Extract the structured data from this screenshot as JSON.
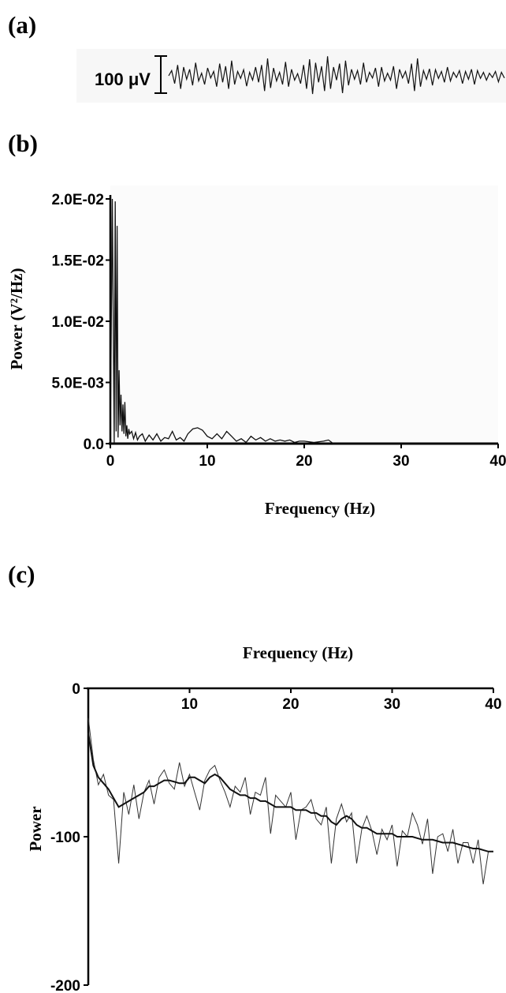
{
  "panel_labels": {
    "a": "(a)",
    "b": "(b)",
    "c": "(c)"
  },
  "colors": {
    "trace": "#111111",
    "axis": "#000000",
    "plot_bg_b": "#fbfbfb"
  },
  "chart_data": [
    {
      "panel": "a",
      "type": "line",
      "title": "",
      "scale_bar_label": "100 μV",
      "trace": [
        0,
        12,
        -18,
        25,
        -30,
        20,
        -8,
        15,
        -22,
        30,
        -12,
        6,
        -20,
        18,
        -5,
        10,
        -25,
        28,
        -15,
        22,
        -30,
        35,
        -20,
        10,
        -6,
        14,
        -24,
        8,
        -10,
        20,
        -15,
        25,
        -35,
        40,
        -28,
        18,
        -12,
        8,
        -20,
        32,
        -25,
        15,
        -10,
        5,
        -18,
        25,
        -30,
        38,
        -42,
        30,
        -15,
        22,
        -35,
        45,
        -30,
        20,
        -10,
        28,
        -40,
        35,
        -22,
        15,
        -8,
        12,
        -20,
        30,
        -15,
        8,
        -5,
        18,
        -25,
        20,
        -12,
        6,
        -10,
        22,
        -30,
        15,
        -5,
        10,
        -18,
        28,
        -35,
        40,
        -25,
        12,
        -8,
        16,
        -22,
        14,
        -6,
        10,
        -15,
        20,
        -12,
        8,
        -4,
        12,
        -18,
        10,
        -8,
        15,
        -20,
        12,
        -6,
        8,
        -10,
        6,
        -4,
        10,
        -14,
        8,
        -5
      ]
    },
    {
      "panel": "b",
      "type": "line",
      "title": "",
      "xlabel": "Frequency (Hz)",
      "ylabel": "Power (V²/Hz)",
      "xlim": [
        0,
        40
      ],
      "ylim": [
        0,
        0.02
      ],
      "xticks": [
        "0",
        "10",
        "20",
        "30",
        "40"
      ],
      "yticks": [
        "0.0",
        "5.0E-03",
        "1.0E-02",
        "1.5E-02",
        "2.0E-02"
      ],
      "x": [
        0,
        0.2,
        0.4,
        0.5,
        0.6,
        0.7,
        0.8,
        0.9,
        1.0,
        1.1,
        1.2,
        1.3,
        1.4,
        1.5,
        1.6,
        1.7,
        1.8,
        1.9,
        2.0,
        2.2,
        2.4,
        2.6,
        2.8,
        3.0,
        3.3,
        3.6,
        4.0,
        4.4,
        4.8,
        5.2,
        5.6,
        6.0,
        6.4,
        6.8,
        7.2,
        7.6,
        8.0,
        8.5,
        9.0,
        9.5,
        10.0,
        10.5,
        11.0,
        11.5,
        12.0,
        12.5,
        13.0,
        13.5,
        14.0,
        14.5,
        15.0,
        15.5,
        16.0,
        16.5,
        17.0,
        17.5,
        18.0,
        18.5,
        19.0,
        19.5,
        20.0,
        21.0,
        22.0,
        22.5,
        23.0,
        25.0,
        30.0,
        35.0,
        40.0
      ],
      "values": [
        0.0,
        0.02,
        0.0,
        0.0198,
        0.001,
        0.0178,
        0.0005,
        0.006,
        0.0015,
        0.004,
        0.001,
        0.0032,
        0.0008,
        0.0034,
        0.0006,
        0.0015,
        0.0004,
        0.0012,
        0.0008,
        0.001,
        0.0004,
        0.0009,
        0.0003,
        0.0006,
        0.0008,
        0.0002,
        0.0007,
        0.0003,
        0.0008,
        0.0002,
        0.0005,
        0.0004,
        0.001,
        0.0003,
        0.0005,
        0.0002,
        0.0008,
        0.0012,
        0.0013,
        0.0011,
        0.0006,
        0.0004,
        0.0008,
        0.0004,
        0.001,
        0.0006,
        0.0002,
        0.0004,
        0.0001,
        0.0006,
        0.0003,
        0.0005,
        0.0002,
        0.0004,
        0.0002,
        0.0003,
        0.0002,
        0.0003,
        0.0001,
        0.0002,
        0.0002,
        0.0001,
        0.0002,
        0.0003,
        0.0,
        0.0,
        0.0,
        0.0,
        0.0
      ]
    },
    {
      "panel": "c",
      "type": "line",
      "title": "",
      "xlabel": "Frequency (Hz)",
      "ylabel": "Power",
      "xlim": [
        0,
        40
      ],
      "ylim": [
        -200,
        0
      ],
      "xticks": [
        "10",
        "20",
        "30",
        "40"
      ],
      "yticks": [
        "0",
        "-100",
        "-200"
      ],
      "x": [
        0,
        0.5,
        1.0,
        1.5,
        2.0,
        2.5,
        3.0,
        3.5,
        4.0,
        4.5,
        5.0,
        5.5,
        6.0,
        6.5,
        7.0,
        7.5,
        8.0,
        8.5,
        9.0,
        9.5,
        10.0,
        10.5,
        11.0,
        11.5,
        12.0,
        12.5,
        13.0,
        13.5,
        14.0,
        14.5,
        15.0,
        15.5,
        16.0,
        16.5,
        17.0,
        17.5,
        18.0,
        18.5,
        19.0,
        19.5,
        20.0,
        20.5,
        21.0,
        21.5,
        22.0,
        22.5,
        23.0,
        23.5,
        24.0,
        24.5,
        25.0,
        25.5,
        26.0,
        26.5,
        27.0,
        27.5,
        28.0,
        28.5,
        29.0,
        29.5,
        30.0,
        30.5,
        31.0,
        31.5,
        32.0,
        32.5,
        33.0,
        33.5,
        34.0,
        34.5,
        35.0,
        35.5,
        36.0,
        36.5,
        37.0,
        37.5,
        38.0,
        38.5,
        39.0,
        39.5,
        40.0
      ],
      "series": [
        {
          "values": [
            -20,
            -48,
            -65,
            -58,
            -72,
            -75,
            -118,
            -70,
            -85,
            -65,
            -88,
            -70,
            -62,
            -78,
            -60,
            -55,
            -64,
            -68,
            -50,
            -66,
            -58,
            -70,
            -82,
            -62,
            -55,
            -52,
            -62,
            -70,
            -80,
            -66,
            -70,
            -60,
            -85,
            -70,
            -72,
            -60,
            -98,
            -72,
            -76,
            -80,
            -70,
            -102,
            -82,
            -80,
            -75,
            -88,
            -92,
            -80,
            -118,
            -88,
            -78,
            -90,
            -84,
            -118,
            -95,
            -86,
            -96,
            -112,
            -95,
            -102,
            -92,
            -120,
            -96,
            -100,
            -84,
            -92,
            -105,
            -88,
            -125,
            -100,
            -98,
            -110,
            -95,
            -118,
            -104,
            -104,
            -118,
            -102,
            -132,
            -110,
            -110
          ]
        },
        {
          "values": [
            -30,
            -52,
            -60,
            -64,
            -68,
            -74,
            -80,
            -78,
            -76,
            -74,
            -72,
            -70,
            -66,
            -66,
            -64,
            -62,
            -62,
            -63,
            -64,
            -64,
            -60,
            -60,
            -62,
            -64,
            -60,
            -58,
            -60,
            -64,
            -68,
            -70,
            -72,
            -72,
            -74,
            -74,
            -76,
            -76,
            -78,
            -80,
            -80,
            -80,
            -80,
            -82,
            -82,
            -82,
            -84,
            -84,
            -86,
            -86,
            -90,
            -92,
            -88,
            -86,
            -88,
            -92,
            -94,
            -94,
            -96,
            -98,
            -98,
            -98,
            -98,
            -100,
            -100,
            -100,
            -100,
            -101,
            -102,
            -102,
            -102,
            -103,
            -104,
            -104,
            -104,
            -105,
            -106,
            -107,
            -108,
            -108,
            -109,
            -110,
            -110
          ]
        }
      ]
    }
  ]
}
